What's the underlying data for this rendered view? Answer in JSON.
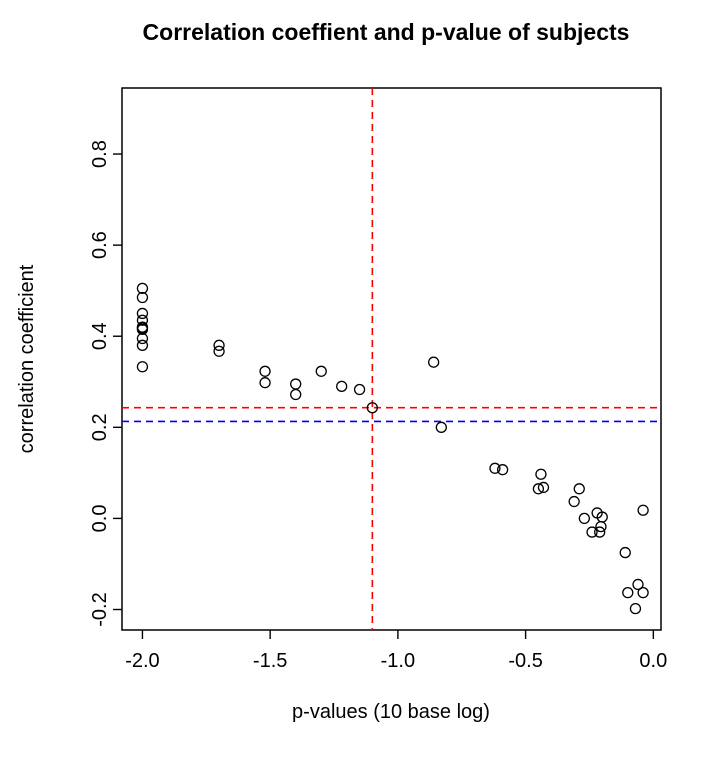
{
  "chart_data": {
    "type": "scatter",
    "title": "Correlation coeffient and p-value of subjects",
    "xlabel": "p-values (10 base log)",
    "ylabel": "correlation coefficient",
    "xlim": [
      -2.08,
      0.03
    ],
    "ylim": [
      -0.245,
      0.945
    ],
    "x_ticks": [
      -2.0,
      -1.5,
      -1.0,
      -0.5,
      0.0
    ],
    "x_tick_labels": [
      "-2.0",
      "-1.5",
      "-1.0",
      "-0.5",
      "0.0"
    ],
    "y_ticks": [
      -0.2,
      0.0,
      0.2,
      0.4,
      0.6,
      0.8
    ],
    "y_tick_labels": [
      "-0.2",
      "0.0",
      "0.2",
      "0.4",
      "0.6",
      "0.8"
    ],
    "grid": false,
    "marker": "open-circle",
    "points": [
      {
        "x": -2.0,
        "y": 0.505
      },
      {
        "x": -2.0,
        "y": 0.485
      },
      {
        "x": -2.0,
        "y": 0.45
      },
      {
        "x": -2.0,
        "y": 0.435
      },
      {
        "x": -2.0,
        "y": 0.42
      },
      {
        "x": -2.0,
        "y": 0.418
      },
      {
        "x": -2.0,
        "y": 0.415
      },
      {
        "x": -2.0,
        "y": 0.395
      },
      {
        "x": -2.0,
        "y": 0.38
      },
      {
        "x": -2.0,
        "y": 0.333
      },
      {
        "x": -1.7,
        "y": 0.38
      },
      {
        "x": -1.7,
        "y": 0.367
      },
      {
        "x": -1.52,
        "y": 0.323
      },
      {
        "x": -1.52,
        "y": 0.298
      },
      {
        "x": -1.4,
        "y": 0.295
      },
      {
        "x": -1.4,
        "y": 0.272
      },
      {
        "x": -1.3,
        "y": 0.323
      },
      {
        "x": -1.22,
        "y": 0.29
      },
      {
        "x": -1.15,
        "y": 0.283
      },
      {
        "x": -1.1,
        "y": 0.243
      },
      {
        "x": -0.86,
        "y": 0.343
      },
      {
        "x": -0.83,
        "y": 0.2
      },
      {
        "x": -0.62,
        "y": 0.11
      },
      {
        "x": -0.59,
        "y": 0.107
      },
      {
        "x": -0.44,
        "y": 0.097
      },
      {
        "x": -0.45,
        "y": 0.065
      },
      {
        "x": -0.43,
        "y": 0.068
      },
      {
        "x": -0.31,
        "y": 0.037
      },
      {
        "x": -0.29,
        "y": 0.065
      },
      {
        "x": -0.27,
        "y": 0.0
      },
      {
        "x": -0.24,
        "y": -0.03
      },
      {
        "x": -0.22,
        "y": 0.012
      },
      {
        "x": -0.21,
        "y": -0.03
      },
      {
        "x": -0.205,
        "y": -0.018
      },
      {
        "x": -0.2,
        "y": 0.003
      },
      {
        "x": -0.11,
        "y": -0.075
      },
      {
        "x": -0.1,
        "y": -0.163
      },
      {
        "x": -0.07,
        "y": -0.198
      },
      {
        "x": -0.06,
        "y": -0.145
      },
      {
        "x": -0.04,
        "y": -0.163
      },
      {
        "x": -0.04,
        "y": 0.018
      }
    ],
    "reference_lines": [
      {
        "orientation": "vertical",
        "value": -1.1,
        "color": "#ff0000",
        "style": "dashed"
      },
      {
        "orientation": "horizontal",
        "value": 0.243,
        "color": "#ff0000",
        "style": "dashed"
      },
      {
        "orientation": "horizontal",
        "value": 0.213,
        "color": "#0000ff",
        "style": "dashed"
      }
    ]
  }
}
